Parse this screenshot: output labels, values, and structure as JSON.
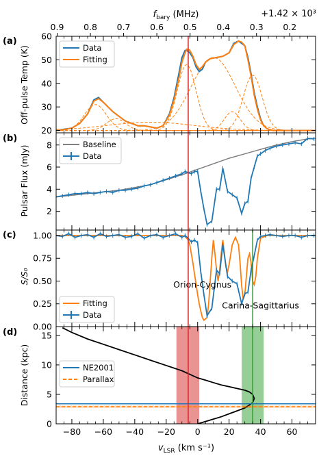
{
  "figure": {
    "top_axis_label": "f_bary (MHz)",
    "top_offset": "+1.42 × 10³",
    "x_label": "v_LSR (km s⁻¹)"
  },
  "colors": {
    "blue": "#1f77b4",
    "orange": "#ff7f0e",
    "red": "#d62728",
    "green": "#2ca02c",
    "gray": "#7f7f7f",
    "black": "#000000",
    "purple": "#9467bd"
  },
  "chart_data": [
    {
      "panel": "(a)",
      "type": "line",
      "ylabel": "Off-pulse Temp (K)",
      "xlim": [
        -90,
        75
      ],
      "ylim": [
        19,
        60
      ],
      "yticks": [
        20,
        30,
        40,
        50,
        60
      ],
      "top_xticks": [
        0.9,
        0.8,
        0.7,
        0.6,
        0.5,
        0.4,
        0.3,
        0.2
      ],
      "legend": [
        "Data",
        "Fitting"
      ],
      "legend_position": "upper-left",
      "series": [
        {
          "name": "Data",
          "color": "blue",
          "x": [
            -90,
            -85,
            -80,
            -75,
            -70,
            -66,
            -63,
            -60,
            -57,
            -54,
            -50,
            -46,
            -42,
            -38,
            -34,
            -30,
            -26,
            -22,
            -18,
            -15,
            -12,
            -10,
            -8,
            -7,
            -6,
            -5,
            -3,
            -1,
            1,
            3,
            5,
            8,
            12,
            16,
            20,
            23,
            26,
            28,
            30,
            32,
            34,
            36,
            38,
            40,
            42,
            44,
            46,
            48,
            50,
            55,
            60,
            65,
            70,
            75
          ],
          "y": [
            20,
            20.5,
            21,
            23,
            27,
            33,
            34,
            32,
            30,
            28,
            26,
            24,
            23,
            22,
            22,
            21.5,
            21,
            22,
            27,
            34,
            44,
            51,
            54,
            54,
            53.5,
            53,
            51,
            47,
            45,
            46,
            49,
            50.5,
            51,
            51.5,
            53,
            57,
            58,
            57,
            56,
            51,
            44,
            36,
            30,
            25,
            22,
            20.8,
            20.3,
            20,
            20,
            20,
            20,
            20,
            20,
            20
          ]
        },
        {
          "name": "Fitting",
          "color": "orange",
          "x": [
            -90,
            -85,
            -80,
            -75,
            -70,
            -66,
            -63,
            -60,
            -57,
            -54,
            -50,
            -46,
            -42,
            -38,
            -34,
            -30,
            -26,
            -22,
            -18,
            -15,
            -12,
            -10,
            -8,
            -7,
            -6,
            -5,
            -3,
            -1,
            1,
            3,
            5,
            8,
            12,
            16,
            20,
            23,
            26,
            28,
            30,
            32,
            34,
            36,
            38,
            40,
            42,
            44,
            46,
            48,
            50,
            55,
            60,
            65,
            70,
            75
          ],
          "y": [
            20,
            20.4,
            21,
            23,
            27,
            32.5,
            33.5,
            32,
            30,
            28,
            26,
            24,
            23,
            22,
            22,
            21.5,
            21,
            22,
            26.5,
            33,
            42,
            49,
            53,
            54.5,
            54.5,
            54,
            51.5,
            48,
            46,
            47,
            49,
            50.5,
            51,
            51.5,
            53,
            56.5,
            58,
            57.5,
            56,
            50,
            43,
            35,
            29,
            24.5,
            22,
            20.8,
            20.3,
            20,
            20,
            20,
            20,
            20,
            20,
            20
          ]
        }
      ],
      "components": [
        {
          "mean": -65,
          "sigma": 7,
          "amp": 11
        },
        {
          "mean": -52,
          "sigma": 6,
          "amp": 5
        },
        {
          "mean": -30,
          "sigma": 28,
          "amp": 3.5
        },
        {
          "mean": -7,
          "sigma": 6,
          "amp": 28
        },
        {
          "mean": 10,
          "sigma": 14,
          "amp": 31
        },
        {
          "mean": 22,
          "sigma": 5,
          "amp": 8
        },
        {
          "mean": 35,
          "sigma": 6,
          "amp": 23.5
        }
      ],
      "baseline_level": 20
    },
    {
      "panel": "(b)",
      "type": "line",
      "ylabel": "Pulsar Flux (mJy)",
      "ylim": [
        0.3,
        9.1
      ],
      "yticks": [
        2,
        4,
        6,
        8
      ],
      "legend": [
        "Baseline",
        "Data"
      ],
      "legend_position": "upper-left",
      "series": [
        {
          "name": "Baseline",
          "color": "gray",
          "x": [
            -90,
            -70,
            -50,
            -30,
            -10,
            0,
            10,
            20,
            30,
            40,
            50,
            60,
            70,
            75
          ],
          "y": [
            3.3,
            3.6,
            3.9,
            4.4,
            5.3,
            5.8,
            6.3,
            6.8,
            7.2,
            7.6,
            8.0,
            8.3,
            8.55,
            8.6
          ]
        },
        {
          "name": "Data",
          "color": "blue",
          "x": [
            -90,
            -86,
            -82,
            -78,
            -74,
            -70,
            -66,
            -62,
            -58,
            -54,
            -50,
            -46,
            -42,
            -38,
            -34,
            -30,
            -26,
            -22,
            -18,
            -14,
            -10,
            -8,
            -6,
            -4,
            -2,
            0,
            2,
            4,
            6,
            9,
            12,
            14,
            16,
            19,
            22,
            25,
            28,
            30,
            32,
            34,
            36,
            38,
            40,
            43,
            46,
            50,
            54,
            58,
            62,
            66,
            70,
            74
          ],
          "y": [
            3.3,
            3.4,
            3.5,
            3.6,
            3.6,
            3.7,
            3.6,
            3.7,
            3.8,
            3.7,
            3.9,
            3.9,
            4.0,
            4.1,
            4.3,
            4.4,
            4.6,
            4.8,
            5.0,
            5.2,
            5.4,
            5.6,
            5.5,
            5.4,
            5.6,
            5.6,
            3.8,
            2.2,
            0.8,
            1.1,
            4.0,
            4.0,
            5.9,
            3.8,
            3.5,
            3.2,
            1.8,
            2.7,
            2.9,
            5.0,
            6.0,
            7.0,
            7.2,
            7.5,
            7.7,
            7.9,
            8.0,
            8.1,
            8.2,
            8.1,
            8.6,
            8.55
          ]
        }
      ]
    },
    {
      "panel": "(c)",
      "type": "line",
      "ylabel": "S/S₀",
      "ylim": [
        0.0,
        1.06
      ],
      "yticks": [
        "0.00",
        "0.25",
        "0.50",
        "0.75",
        "1.00"
      ],
      "legend": [
        "Fitting",
        "Data"
      ],
      "legend_position": "lower-left",
      "annotations": [
        {
          "text": "Orion-Cygnus",
          "color": "purple",
          "x": 3,
          "y": 0.43
        },
        {
          "text": "Carina-Sagittarius",
          "color": "green",
          "x": 40,
          "y": 0.2
        }
      ],
      "series": [
        {
          "name": "Fitting",
          "color": "orange",
          "x": [
            -90,
            -20,
            -10,
            -8,
            -6,
            -5,
            -4,
            -3,
            -2,
            -1,
            0,
            1,
            2,
            3,
            4,
            6,
            7,
            8,
            9,
            10,
            11,
            12,
            13,
            14,
            15,
            16,
            17,
            18,
            19,
            20,
            22,
            24,
            26,
            27,
            28,
            29,
            30,
            31,
            32,
            33,
            34,
            35,
            36,
            37,
            38,
            40,
            44,
            50,
            75
          ],
          "y": [
            1,
            1,
            1,
            0.99,
            0.95,
            0.9,
            0.8,
            0.7,
            0.58,
            0.47,
            0.35,
            0.25,
            0.17,
            0.1,
            0.07,
            0.1,
            0.25,
            0.5,
            0.75,
            0.95,
            0.8,
            0.62,
            0.5,
            0.62,
            0.8,
            0.95,
            0.8,
            0.65,
            0.6,
            0.68,
            0.9,
            0.98,
            0.9,
            0.7,
            0.45,
            0.3,
            0.35,
            0.55,
            0.75,
            0.8,
            0.7,
            0.5,
            0.46,
            0.55,
            0.75,
            0.97,
            1,
            1,
            1
          ]
        },
        {
          "name": "Data",
          "color": "blue",
          "x": [
            -90,
            -86,
            -82,
            -78,
            -74,
            -70,
            -66,
            -62,
            -58,
            -54,
            -50,
            -46,
            -42,
            -38,
            -34,
            -30,
            -26,
            -22,
            -18,
            -14,
            -10,
            -8,
            -6,
            -4,
            -2,
            0,
            2,
            4,
            6,
            9,
            12,
            14,
            16,
            19,
            22,
            25,
            28,
            30,
            32,
            34,
            36,
            38,
            40,
            43,
            46,
            50,
            54,
            58,
            62,
            66,
            70,
            74
          ],
          "y": [
            1.0,
            0.99,
            1.02,
            0.98,
            1.0,
            1.01,
            0.98,
            1.02,
            0.99,
            1.0,
            1.01,
            0.98,
            0.99,
            1.02,
            0.97,
            1.0,
            1.01,
            0.98,
            1.0,
            1.02,
            0.98,
            1.0,
            0.97,
            0.93,
            0.95,
            0.92,
            0.6,
            0.35,
            0.12,
            0.2,
            0.62,
            0.58,
            0.9,
            0.55,
            0.5,
            0.47,
            0.25,
            0.36,
            0.38,
            0.62,
            0.78,
            0.95,
            0.99,
            1.0,
            1.01,
            1.0,
            0.99,
            1.0,
            1.0,
            0.98,
            1.0,
            1.0
          ]
        }
      ]
    },
    {
      "panel": "(d)",
      "type": "line",
      "ylabel": "Distance (kpc)",
      "xlabel": "v_LSR (km s⁻¹)",
      "xlim": [
        -90,
        75
      ],
      "ylim": [
        0,
        16.5
      ],
      "xticks": [
        -80,
        -60,
        -40,
        -20,
        0,
        20,
        40,
        60
      ],
      "yticks": [
        0,
        5,
        10,
        15
      ],
      "legend": [
        "NE2001",
        "Parallax"
      ],
      "legend_position": "center-left",
      "ne2001_distance": 3.4,
      "parallax_distance": 2.9,
      "parallax_band": [
        2.7,
        3.1
      ],
      "series": [
        {
          "name": "rotation_curve",
          "color": "black",
          "x": [
            -86,
            -80,
            -70,
            -60,
            -50,
            -40,
            -30,
            -20,
            -10,
            -5,
            0,
            5,
            10,
            15,
            20,
            25,
            30,
            33,
            35,
            36,
            35,
            33,
            30,
            25,
            20,
            15,
            10,
            5,
            0
          ],
          "y": [
            16.3,
            15.5,
            14.4,
            13.5,
            12.6,
            11.7,
            10.8,
            9.9,
            9.0,
            8.4,
            7.8,
            7.4,
            7.0,
            6.6,
            6.3,
            6.0,
            5.7,
            5.4,
            5.0,
            4.3,
            3.6,
            3.2,
            2.7,
            2.2,
            1.7,
            1.2,
            0.8,
            0.4,
            0.0
          ]
        }
      ]
    }
  ],
  "markers": {
    "red_line_v": -6,
    "red_band": [
      -13.5,
      1
    ],
    "green_line_v": 35,
    "green_band": [
      28,
      42
    ]
  }
}
